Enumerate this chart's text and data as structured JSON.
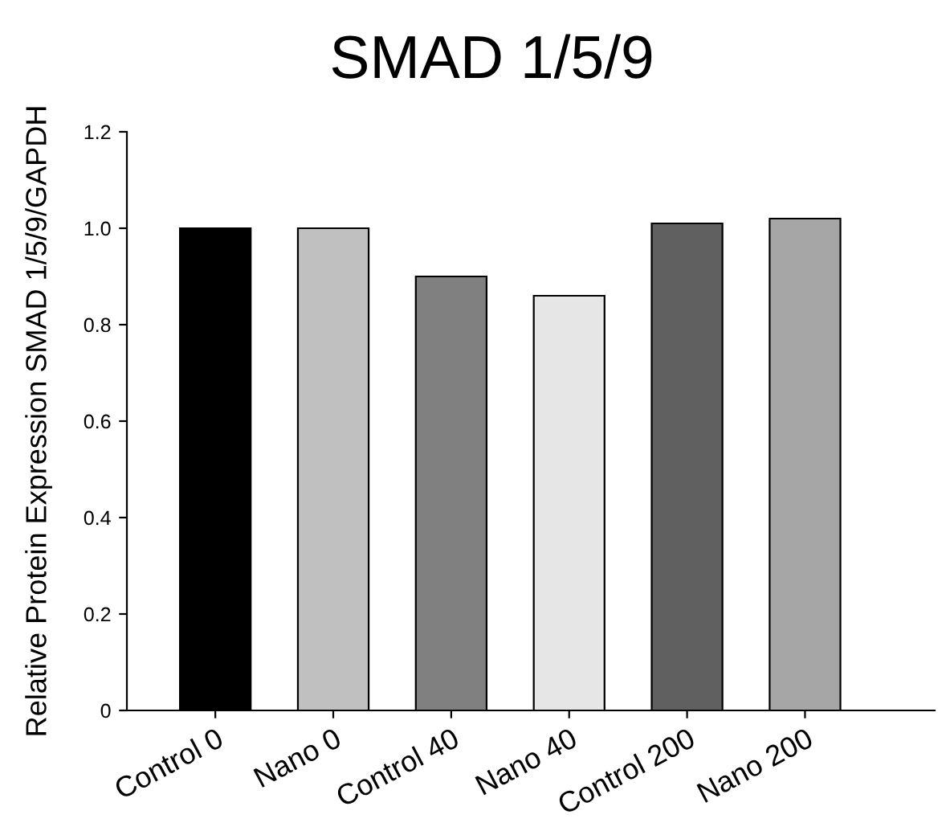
{
  "chart_data": {
    "type": "bar",
    "title": "SMAD 1/5/9",
    "ylabel": "Relative Protein Expression SMAD 1/5/9/GAPDH",
    "categories": [
      "Control 0",
      "Nano 0",
      "Control 40",
      "Nano 40",
      "Control 200",
      "Nano 200"
    ],
    "values": [
      1.0,
      1.0,
      0.9,
      0.86,
      1.01,
      1.02
    ],
    "colors": [
      "#000000",
      "#c0c0c0",
      "#808080",
      "#e6e6e6",
      "#606060",
      "#a6a6a6"
    ],
    "ylim": [
      0,
      1.2
    ],
    "yticks": [
      0,
      {
        "value": 0.2,
        "label": "0.2"
      },
      {
        "value": 0.4,
        "label": "0.4"
      },
      {
        "value": 0.6,
        "label": "0.6"
      },
      {
        "value": 0.8,
        "label": "0.8"
      },
      {
        "value": 1.0,
        "label": "1.0"
      },
      {
        "value": 1.2,
        "label": "1.2"
      }
    ],
    "grid": false
  }
}
